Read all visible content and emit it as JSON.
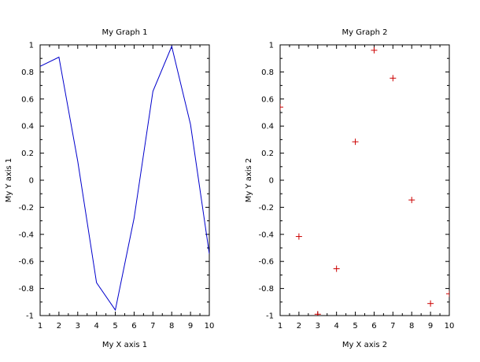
{
  "chart_data": [
    {
      "type": "line",
      "title": "My Graph 1",
      "xlabel": "My X axis 1",
      "ylabel": "My Y axis 1",
      "x": [
        1,
        2,
        3,
        4,
        5,
        6,
        7,
        8,
        9,
        10
      ],
      "series": [
        {
          "values": [
            0.841,
            0.909,
            0.141,
            -0.757,
            -0.959,
            -0.279,
            0.657,
            0.989,
            0.412,
            -0.544
          ],
          "color": "#0000cc"
        }
      ],
      "xlim": [
        1,
        10
      ],
      "ylim": [
        -1,
        1
      ],
      "xticks": [
        "1",
        "2",
        "3",
        "4",
        "5",
        "6",
        "7",
        "8",
        "9",
        "10"
      ],
      "yticks": [
        "-1",
        "-0.8",
        "-0.6",
        "-0.4",
        "-0.2",
        "0",
        "0.2",
        "0.4",
        "0.6",
        "0.8",
        "1"
      ],
      "grid": false
    },
    {
      "type": "scatter",
      "title": "My Graph 2",
      "xlabel": "My X axis 2",
      "ylabel": "My Y axis 2",
      "x": [
        1,
        2,
        3,
        4,
        5,
        6,
        7,
        8,
        9,
        10
      ],
      "series": [
        {
          "values": [
            0.54,
            -0.416,
            -0.99,
            -0.654,
            0.284,
            0.96,
            0.754,
            -0.146,
            -0.911,
            -0.839
          ],
          "color": "#cc0000",
          "marker": "plus"
        }
      ],
      "xlim": [
        1,
        10
      ],
      "ylim": [
        -1,
        1
      ],
      "xticks": [
        "1",
        "2",
        "3",
        "4",
        "5",
        "6",
        "7",
        "8",
        "9",
        "10"
      ],
      "yticks": [
        "-1",
        "-0.8",
        "-0.6",
        "-0.4",
        "-0.2",
        "0",
        "0.2",
        "0.4",
        "0.6",
        "0.8",
        "1"
      ],
      "grid": false
    }
  ]
}
